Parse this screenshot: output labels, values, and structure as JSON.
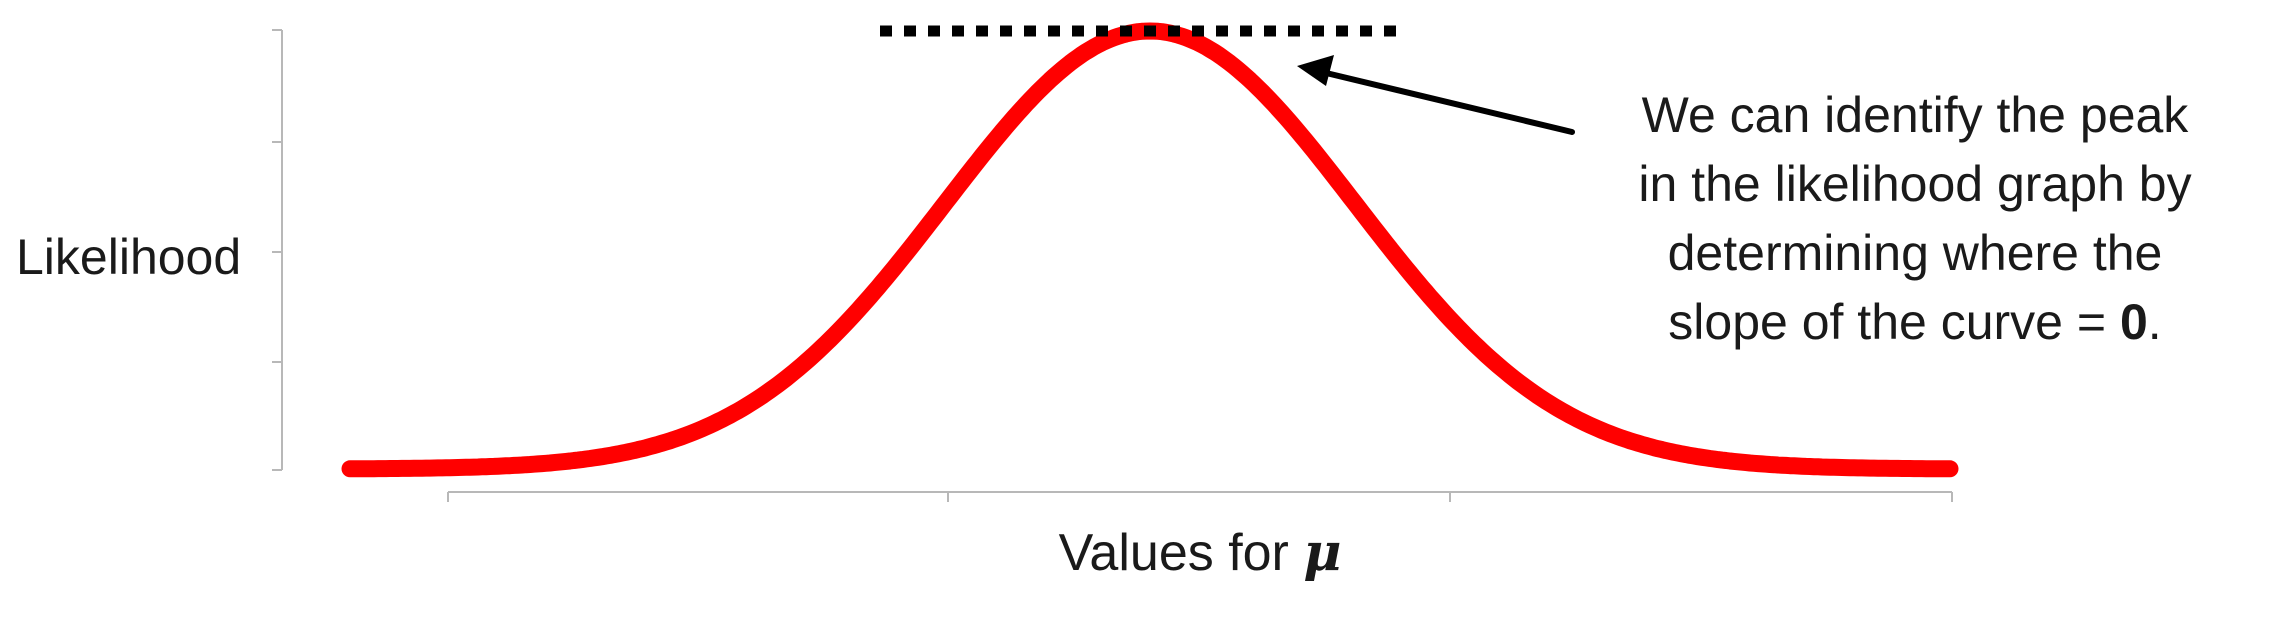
{
  "diagram": {
    "ylabel": "Likelihood",
    "xlabel_prefix": "Values for ",
    "xlabel_symbol": "μ",
    "annotation_lines": [
      "We can identify the peak",
      "in the likelihood graph by",
      "determining where the"
    ],
    "annotation_last_prefix": "slope of the curve = ",
    "annotation_last_value": "0",
    "annotation_last_suffix": ".",
    "curve_color": "#ff0000",
    "tangent_color": "#000000",
    "arrow_color": "#000000",
    "axis_color": "#b8b8b8"
  }
}
